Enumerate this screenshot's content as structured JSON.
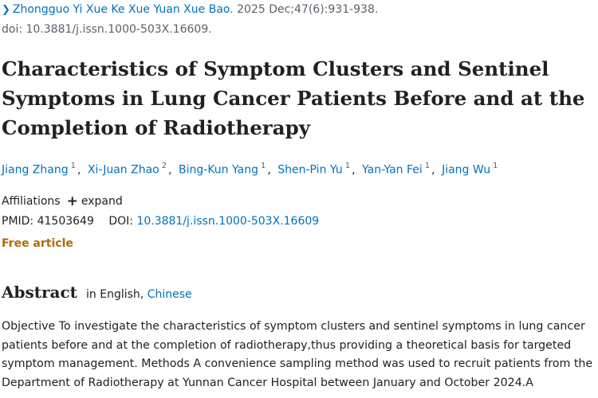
{
  "citation": {
    "journal": "Zhongguo Yi Xue Ke Xue Yuan Xue Bao.",
    "date_pages": "2025 Dec;47(6):931-938.",
    "doi_line": "doi: 10.3881/j.issn.1000-503X.16609."
  },
  "article": {
    "title": "Characteristics of Symptom Clusters and Sentinel Symptoms in Lung Cancer Patients Before and at the Completion of Radiotherapy"
  },
  "authors": [
    {
      "name": "Jiang Zhang",
      "aff": "1"
    },
    {
      "name": "Xi-Juan Zhao",
      "aff": "2"
    },
    {
      "name": "Bing-Kun Yang",
      "aff": "1"
    },
    {
      "name": "Shen-Pin Yu",
      "aff": "1"
    },
    {
      "name": "Yan-Yan Fei",
      "aff": "1"
    },
    {
      "name": "Jiang Wu",
      "aff": "1"
    }
  ],
  "affiliations": {
    "label": "Affiliations",
    "expand_label": "expand"
  },
  "identifiers": {
    "pmid_label": "PMID:",
    "pmid": "41503649",
    "doi_label": "DOI:",
    "doi": "10.3881/j.issn.1000-503X.16609"
  },
  "free_article": "Free article",
  "abstract": {
    "heading": "Abstract",
    "lang_prefix": "in English,",
    "alt_lang": "Chinese",
    "text": "Objective To investigate the characteristics of symptom clusters and sentinel symptoms in lung cancer patients before and at the completion of radiotherapy,thus providing a theoretical basis for targeted symptom management. Methods A convenience sampling method was used to recruit patients from the Department of Radiotherapy at Yunnan Cancer Hospital between January and October 2024.A"
  },
  "colors": {
    "link": "#0071bc",
    "free_article": "#b16b0c",
    "text": "#212121",
    "muted": "#5b616b"
  }
}
